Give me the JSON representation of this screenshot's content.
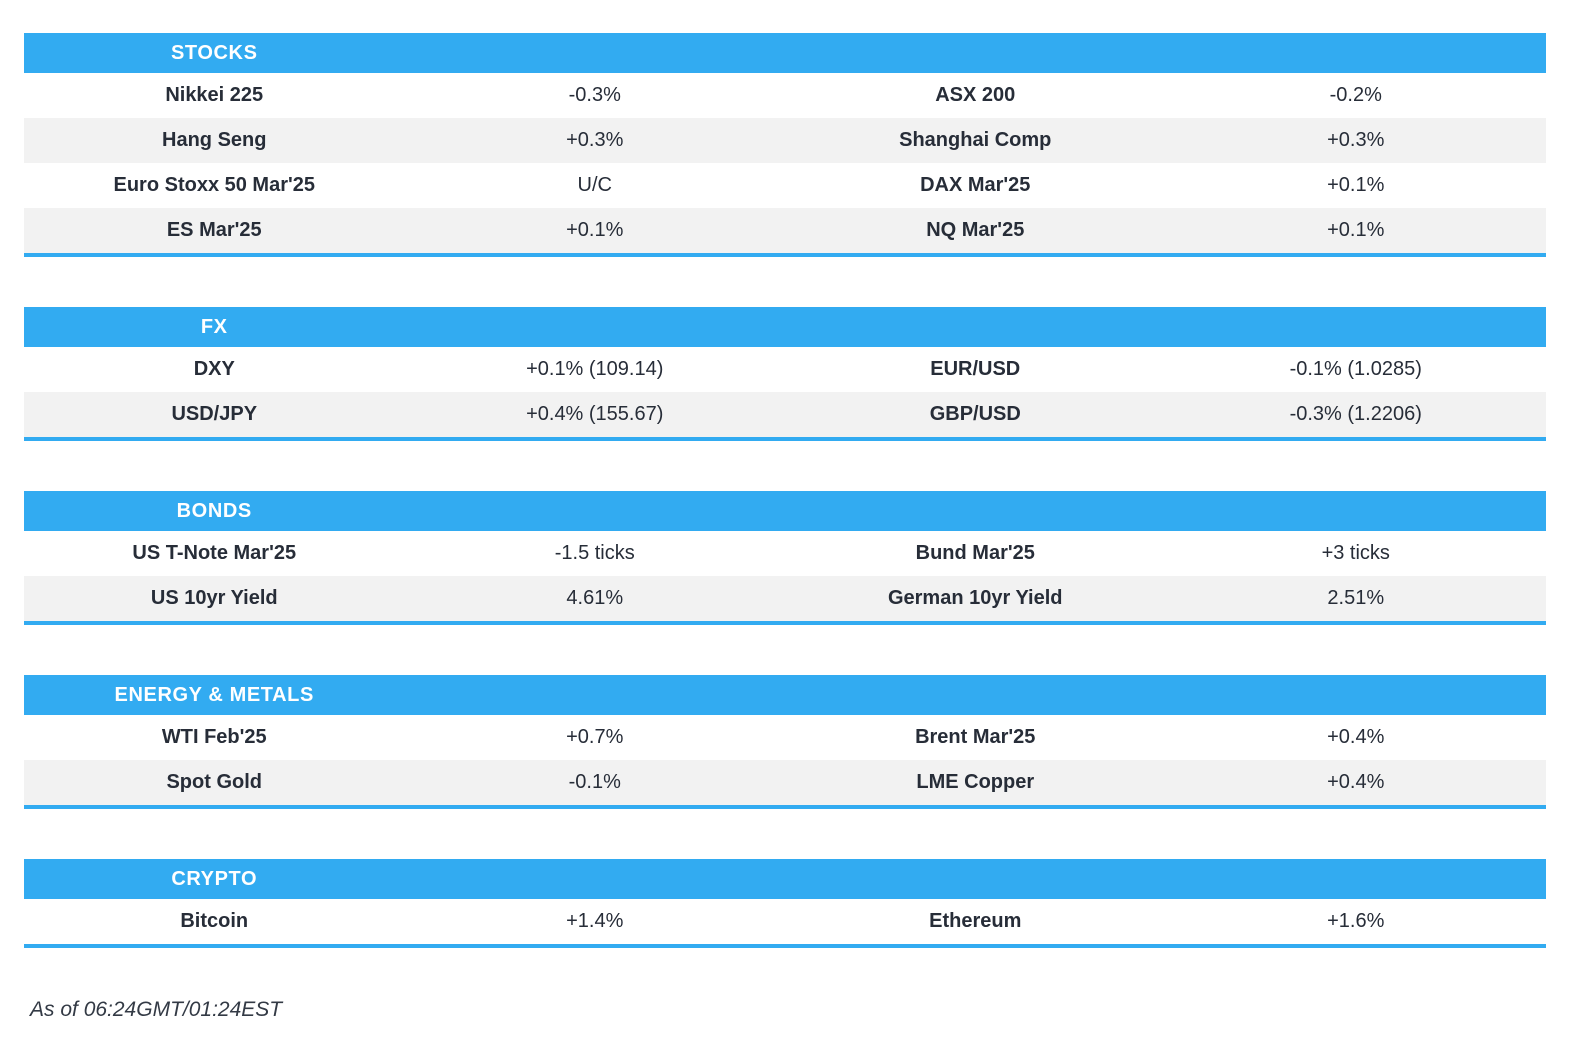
{
  "colors": {
    "accent": "#32ABF1",
    "stripe": "#F2F2F2",
    "text": "#272D38"
  },
  "sections": [
    {
      "title": "STOCKS",
      "rows": [
        {
          "label_left": "Nikkei 225",
          "value_left": "-0.3%",
          "label_right": "ASX 200",
          "value_right": "-0.2%"
        },
        {
          "label_left": "Hang Seng",
          "value_left": "+0.3%",
          "label_right": "Shanghai Comp",
          "value_right": "+0.3%"
        },
        {
          "label_left": "Euro Stoxx 50 Mar'25",
          "value_left": "U/C",
          "label_right": "DAX Mar'25",
          "value_right": "+0.1%"
        },
        {
          "label_left": "ES Mar'25",
          "value_left": "+0.1%",
          "label_right": "NQ Mar'25",
          "value_right": "+0.1%"
        }
      ]
    },
    {
      "title": "FX",
      "rows": [
        {
          "label_left": "DXY",
          "value_left": "+0.1% (109.14)",
          "label_right": "EUR/USD",
          "value_right": "-0.1% (1.0285)"
        },
        {
          "label_left": "USD/JPY",
          "value_left": "+0.4% (155.67)",
          "label_right": "GBP/USD",
          "value_right": "-0.3% (1.2206)"
        }
      ]
    },
    {
      "title": "BONDS",
      "rows": [
        {
          "label_left": "US T-Note Mar'25",
          "value_left": "-1.5 ticks",
          "label_right": "Bund Mar'25",
          "value_right": "+3 ticks"
        },
        {
          "label_left": "US 10yr Yield",
          "value_left": "4.61%",
          "label_right": "German 10yr Yield",
          "value_right": "2.51%"
        }
      ]
    },
    {
      "title": "ENERGY & METALS",
      "rows": [
        {
          "label_left": "WTI Feb'25",
          "value_left": "+0.7%",
          "label_right": "Brent Mar'25",
          "value_right": "+0.4%"
        },
        {
          "label_left": "Spot Gold",
          "value_left": "-0.1%",
          "label_right": "LME Copper",
          "value_right": "+0.4%"
        }
      ]
    },
    {
      "title": "CRYPTO",
      "rows": [
        {
          "label_left": "Bitcoin",
          "value_left": "+1.4%",
          "label_right": "Ethereum",
          "value_right": "+1.6%"
        }
      ]
    }
  ],
  "footer": {
    "timestamp": "As of 06:24GMT/01:24EST"
  }
}
